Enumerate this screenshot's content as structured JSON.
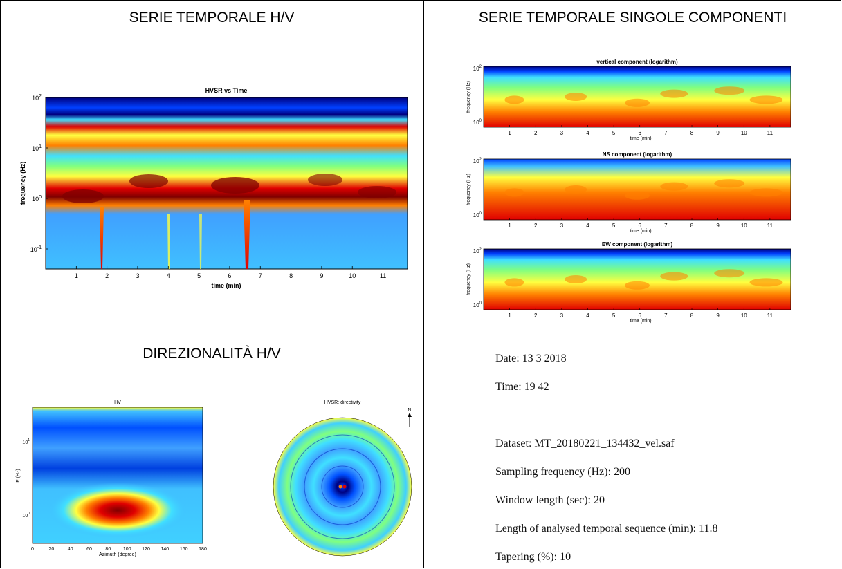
{
  "sections": {
    "hv_time_title": "SERIE TEMPORALE H/V",
    "components_title": "SERIE TEMPORALE SINGOLE COMPONENTI",
    "directivity_title": "DIREZIONALITÀ H/V"
  },
  "hvsr_time_plot": {
    "title": "HVSR vs Time",
    "xlabel": "time (min)",
    "ylabel": "frequency (Hz)",
    "yticks": [
      "10",
      "10",
      "10",
      "10"
    ],
    "yexp": [
      "2",
      "1",
      "0",
      "-1"
    ],
    "xticks": [
      "1",
      "2",
      "3",
      "4",
      "5",
      "6",
      "7",
      "8",
      "9",
      "10",
      "11"
    ]
  },
  "component_plots": [
    {
      "title": "vertical component (logarithm)",
      "xlabel": "time (min)",
      "ylabel": "frequency (Hz)"
    },
    {
      "title": "NS component (logarithm)",
      "xlabel": "time (min)",
      "ylabel": "frequency (Hz)"
    },
    {
      "title": "EW component (logarithm)",
      "xlabel": "time (min)",
      "ylabel": "frequency (Hz)"
    }
  ],
  "component_axis": {
    "yticks": [
      "10",
      "10"
    ],
    "yexp": [
      "2",
      "0"
    ],
    "xticks": [
      "1",
      "2",
      "3",
      "4",
      "5",
      "6",
      "7",
      "8",
      "9",
      "10",
      "11"
    ]
  },
  "hv_azimuth_plot": {
    "title": "HV",
    "xlabel": "Azimuth (degree)",
    "ylabel": "F (Hz)",
    "xticks": [
      "0",
      "20",
      "40",
      "60",
      "80",
      "100",
      "120",
      "140",
      "160",
      "180"
    ],
    "yticks": [
      "10",
      "10"
    ],
    "yexp": [
      "1",
      "0"
    ]
  },
  "polar_plot": {
    "title": "HVSR: directivity",
    "north_label": "N"
  },
  "metadata": {
    "date": "Date: 13 3 2018",
    "time": "Time: 19 42",
    "dataset": "Dataset: MT_20180221_134432_vel.saf",
    "sampling": "Sampling frequency (Hz): 200",
    "window": "Window length (sec): 20",
    "length": "Length of analysed temporal sequence (min): 11.8",
    "tapering": "Tapering (%): 10"
  },
  "colors": {
    "deep_blue": "#00007f",
    "blue": "#0040ff",
    "cyan": "#40e0ff",
    "yellow": "#ffff40",
    "orange": "#ff8000",
    "red": "#e00000",
    "dark_red": "#7f0000"
  }
}
